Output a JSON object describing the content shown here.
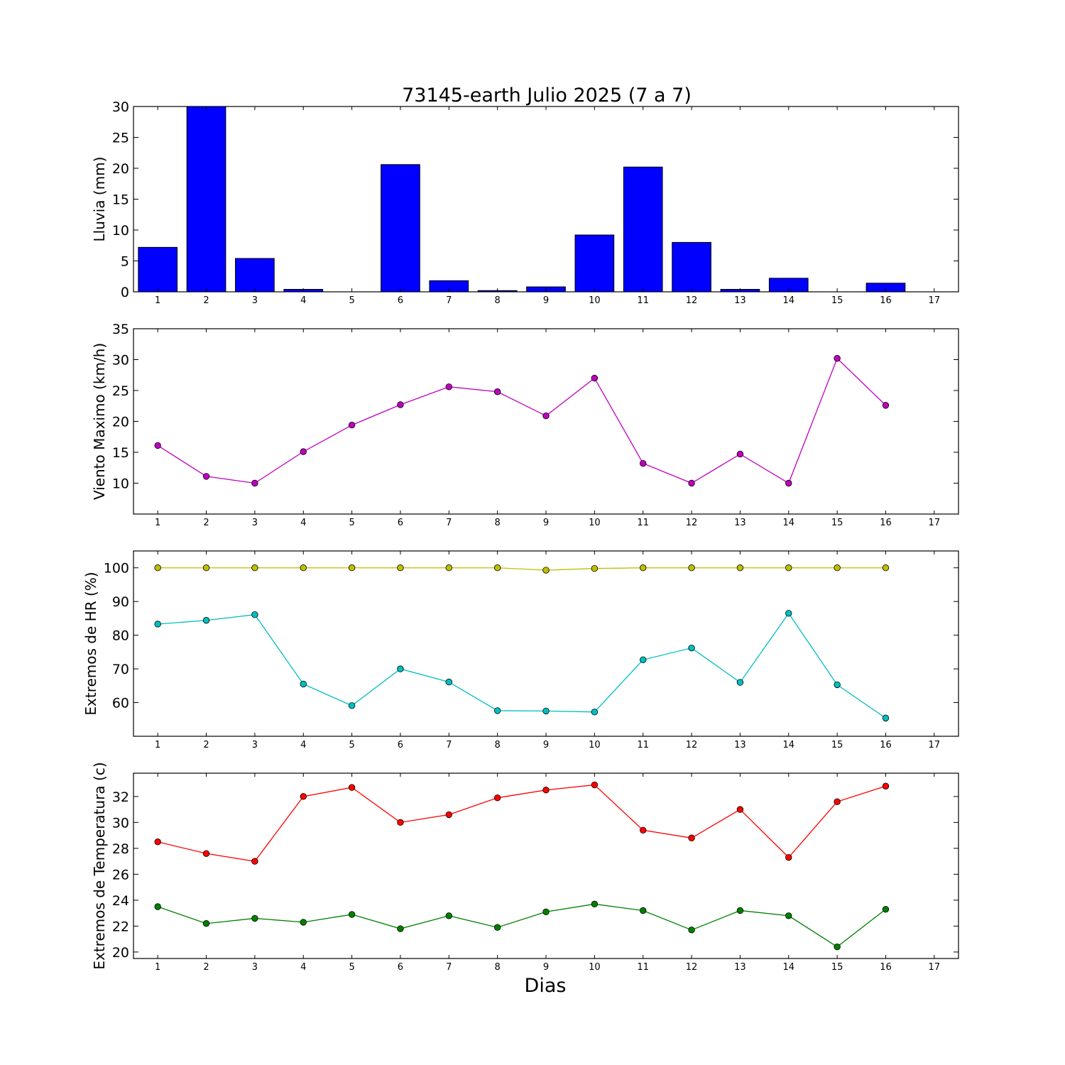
{
  "title": "73145-earth Julio 2025  (7 a 7)",
  "xlabel": "Dias",
  "chart_data": [
    {
      "type": "bar",
      "ylabel": "Lluvia (mm)",
      "x": [
        1,
        2,
        3,
        4,
        5,
        6,
        7,
        8,
        9,
        10,
        11,
        12,
        13,
        14,
        15,
        16
      ],
      "values": [
        7.2,
        30.0,
        5.4,
        0.4,
        0.0,
        20.6,
        1.8,
        0.2,
        0.8,
        9.2,
        20.2,
        8.0,
        0.4,
        2.2,
        0.0,
        1.4
      ],
      "xlim": [
        0.5,
        17.5
      ],
      "ylim": [
        0,
        30
      ],
      "xticks": [
        1,
        2,
        3,
        4,
        5,
        6,
        7,
        8,
        9,
        10,
        11,
        12,
        13,
        14,
        15,
        16,
        17
      ],
      "yticks": [
        0,
        5,
        10,
        15,
        20,
        25,
        30
      ],
      "color": "#0000ff"
    },
    {
      "type": "line",
      "ylabel": "Viento Maximo (km/h)",
      "x": [
        1,
        2,
        3,
        4,
        5,
        6,
        7,
        8,
        9,
        10,
        11,
        12,
        13,
        14,
        15,
        16
      ],
      "series": [
        {
          "values": [
            16.1,
            11.1,
            10.0,
            15.1,
            19.4,
            22.7,
            25.6,
            24.8,
            20.9,
            27.0,
            13.2,
            10.0,
            14.7,
            10.0,
            30.2,
            22.6
          ],
          "color": "#bf00bf"
        }
      ],
      "xlim": [
        0.5,
        17.5
      ],
      "ylim": [
        5,
        35
      ],
      "xticks": [
        1,
        2,
        3,
        4,
        5,
        6,
        7,
        8,
        9,
        10,
        11,
        12,
        13,
        14,
        15,
        16,
        17
      ],
      "yticks": [
        10,
        15,
        20,
        25,
        30,
        35
      ]
    },
    {
      "type": "line",
      "ylabel": "Extremos de HR (%)",
      "x": [
        1,
        2,
        3,
        4,
        5,
        6,
        7,
        8,
        9,
        10,
        11,
        12,
        13,
        14,
        15,
        16
      ],
      "series": [
        {
          "values": [
            100,
            100,
            100,
            100,
            100,
            100,
            100,
            100,
            99.3,
            99.8,
            100,
            100,
            100,
            100,
            100,
            100
          ],
          "color": "#bfbf00"
        },
        {
          "values": [
            83.3,
            84.4,
            86.1,
            65.5,
            59.1,
            70.0,
            66.1,
            57.6,
            57.5,
            57.2,
            72.7,
            76.2,
            66.0,
            86.5,
            65.3,
            55.4
          ],
          "color": "#00bfbf"
        }
      ],
      "xlim": [
        0.5,
        17.5
      ],
      "ylim": [
        50,
        105
      ],
      "xticks": [
        1,
        2,
        3,
        4,
        5,
        6,
        7,
        8,
        9,
        10,
        11,
        12,
        13,
        14,
        15,
        16,
        17
      ],
      "yticks": [
        60,
        70,
        80,
        90,
        100
      ]
    },
    {
      "type": "line",
      "ylabel": "Extremos de Temperatura (c)",
      "x": [
        1,
        2,
        3,
        4,
        5,
        6,
        7,
        8,
        9,
        10,
        11,
        12,
        13,
        14,
        15,
        16
      ],
      "series": [
        {
          "values": [
            28.5,
            27.6,
            27.0,
            32.0,
            32.7,
            30.0,
            30.6,
            31.9,
            32.5,
            32.9,
            29.4,
            28.8,
            31.0,
            27.3,
            31.6,
            32.8
          ],
          "color": "#ff0000"
        },
        {
          "values": [
            23.5,
            22.2,
            22.6,
            22.3,
            22.9,
            21.8,
            22.8,
            21.9,
            23.1,
            23.7,
            23.2,
            21.7,
            23.2,
            22.8,
            20.4,
            23.3
          ],
          "color": "#008000"
        }
      ],
      "xlim": [
        0.5,
        17.5
      ],
      "ylim": [
        19.5,
        33.8
      ],
      "xticks": [
        1,
        2,
        3,
        4,
        5,
        6,
        7,
        8,
        9,
        10,
        11,
        12,
        13,
        14,
        15,
        16,
        17
      ],
      "yticks": [
        20,
        22,
        24,
        26,
        28,
        30,
        32
      ]
    }
  ]
}
